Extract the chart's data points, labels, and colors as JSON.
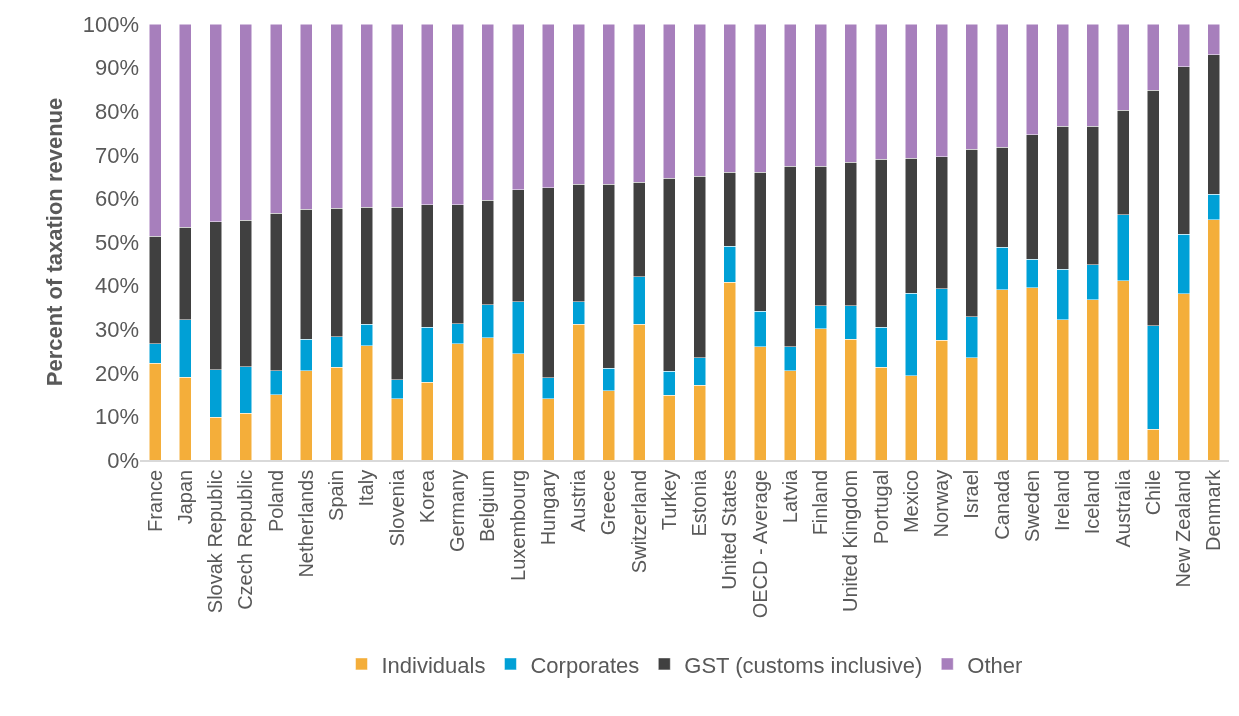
{
  "chart_data": {
    "type": "bar",
    "stacked": true,
    "ylabel": "Percent of taxation revenue",
    "categories": [
      "France",
      "Japan",
      "Slovak Republic",
      "Czech Republic",
      "Poland",
      "Netherlands",
      "Spain",
      "Italy",
      "Slovenia",
      "Korea",
      "Germany",
      "Belgium",
      "Luxembourg",
      "Hungary",
      "Austria",
      "Greece",
      "Switzerland",
      "Turkey",
      "Estonia",
      "United States",
      "OECD - Average",
      "Latvia",
      "Finland",
      "United Kingdom",
      "Portugal",
      "Mexico",
      "Norway",
      "Israel",
      "Canada",
      "Sweden",
      "Ireland",
      "Iceland",
      "Australia",
      "Chile",
      "New Zealand",
      "Denmark"
    ],
    "series": [
      {
        "name": "Individuals",
        "color": "#f4ae3a",
        "values": [
          22.2,
          19,
          9.8,
          10.7,
          15,
          20.5,
          21.3,
          26.2,
          14,
          17.8,
          26.7,
          28,
          24.4,
          14,
          31.1,
          15.9,
          31.1,
          14.8,
          17.1,
          40.8,
          26,
          20.5,
          30.1,
          27.7,
          21.3,
          19.3,
          27.5,
          23.4,
          39.1,
          39.5,
          32.2,
          36.8,
          41.1,
          7.1,
          38.1,
          55.1
        ]
      },
      {
        "name": "Corporates",
        "color": "#00a0d6",
        "values": [
          4.5,
          13.2,
          10.9,
          10.7,
          5.5,
          7.2,
          7,
          4.9,
          4.4,
          12.7,
          4.6,
          7.6,
          11.9,
          4.9,
          5.2,
          5.2,
          10.9,
          5.6,
          6.3,
          8.2,
          8.1,
          5.5,
          5.3,
          7.7,
          9.2,
          18.9,
          11.8,
          9.4,
          9.7,
          6.6,
          11.6,
          8,
          15.2,
          23.7,
          13.7,
          5.8
        ]
      },
      {
        "name": "GST (customs inclusive)",
        "color": "#404040",
        "values": [
          24.6,
          21.2,
          34,
          33.6,
          36.1,
          29.8,
          29.4,
          26.9,
          39.6,
          28.1,
          27.3,
          24,
          25.7,
          43.6,
          26.9,
          42.1,
          21.7,
          44.2,
          41.7,
          17,
          31.9,
          41.4,
          32,
          32.9,
          38.5,
          31,
          30.2,
          38.5,
          22.9,
          28.5,
          32.7,
          31.7,
          23.9,
          54,
          38.4,
          32
        ]
      },
      {
        "name": "Other",
        "color": "#a77fbc",
        "values": [
          48.7,
          46.6,
          45.3,
          45,
          43.4,
          42.5,
          42.3,
          42,
          42,
          41.4,
          41.4,
          40.4,
          38,
          37.5,
          36.8,
          36.8,
          36.3,
          35.4,
          34.9,
          34,
          34,
          32.6,
          32.6,
          31.7,
          31,
          30.8,
          30.5,
          28.7,
          28.3,
          25.4,
          23.5,
          23.5,
          19.8,
          15.2,
          9.8,
          7.1
        ]
      }
    ],
    "ylim": [
      0,
      100
    ],
    "yticks": [
      {
        "value": 0,
        "label": "0%"
      },
      {
        "value": 10,
        "label": "10%"
      },
      {
        "value": 20,
        "label": "20%"
      },
      {
        "value": 30,
        "label": "30%"
      },
      {
        "value": 40,
        "label": "40%"
      },
      {
        "value": 50,
        "label": "50%"
      },
      {
        "value": 60,
        "label": "60%"
      },
      {
        "value": 70,
        "label": "70%"
      },
      {
        "value": 80,
        "label": "80%"
      },
      {
        "value": 90,
        "label": "90%"
      },
      {
        "value": 100,
        "label": "100%"
      }
    ],
    "grid": false,
    "legend": "bottom"
  }
}
